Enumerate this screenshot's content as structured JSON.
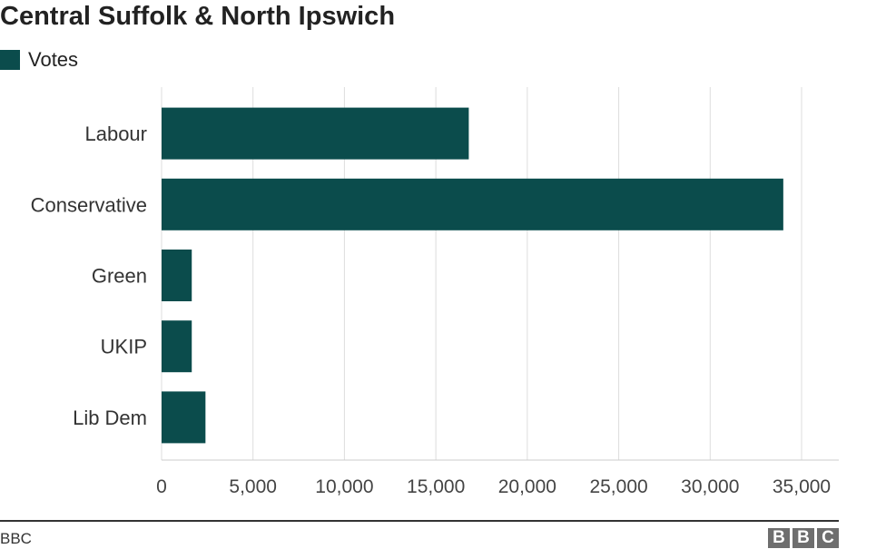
{
  "title": "Central Suffolk & North Ipswich",
  "legend": {
    "label": "Votes",
    "color": "#0b4c4c"
  },
  "chart_data": {
    "type": "bar",
    "orientation": "horizontal",
    "title": "Central Suffolk & North Ipswich",
    "categories": [
      "Labour",
      "Conservative",
      "Green",
      "UKIP",
      "Lib Dem"
    ],
    "series": [
      {
        "name": "Votes",
        "values": [
          16800,
          34000,
          1650,
          1650,
          2400
        ]
      }
    ],
    "xlim": [
      0,
      35000
    ],
    "xticks": [
      0,
      5000,
      10000,
      15000,
      20000,
      25000,
      30000,
      35000
    ],
    "xtick_labels": [
      "0",
      "5,000",
      "10,000",
      "15,000",
      "20,000",
      "25,000",
      "30,000",
      "35,000"
    ],
    "grid": true,
    "legend_position": "top-left",
    "bar_color": "#0b4c4c"
  },
  "footer": {
    "source": "BBC",
    "logo": [
      "B",
      "B",
      "C"
    ]
  }
}
